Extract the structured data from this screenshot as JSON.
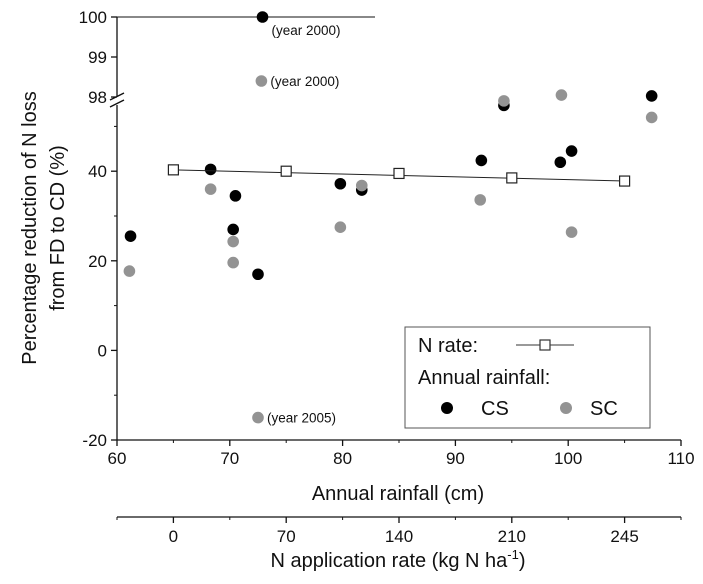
{
  "chart_data": {
    "type": "scatter",
    "title": "",
    "ylabel_line1": "Percentage reduction of N loss",
    "ylabel_line2": "from FD to CD (%)",
    "xlabel": "Annual rainfall (cm)",
    "x2label_text": "N application rate (kg N ha",
    "x2label_sup": "-1",
    "x2label_close": ")",
    "xlim": [
      60,
      110
    ],
    "x_ticks": [
      60,
      70,
      80,
      90,
      100,
      110
    ],
    "ylim_lower": [
      -20,
      55
    ],
    "y_ticks_lower": [
      -20,
      0,
      20,
      40
    ],
    "ylim_upper": [
      98,
      100
    ],
    "y_ticks_upper": [
      98,
      99,
      100
    ],
    "x2_ticks": [
      {
        "label": "0",
        "at_rainfall": 65
      },
      {
        "label": "70",
        "at_rainfall": 75
      },
      {
        "label": "140",
        "at_rainfall": 85
      },
      {
        "label": "210",
        "at_rainfall": 95
      },
      {
        "label": "245",
        "at_rainfall": 105
      }
    ],
    "series": [
      {
        "name": "CS",
        "color": "#000000",
        "points": [
          {
            "x": 61.2,
            "y": 25.5
          },
          {
            "x": 68.3,
            "y": 40.4
          },
          {
            "x": 70.5,
            "y": 34.5
          },
          {
            "x": 70.3,
            "y": 27.0
          },
          {
            "x": 72.5,
            "y": 17.0
          },
          {
            "x": 79.8,
            "y": 37.2
          },
          {
            "x": 81.7,
            "y": 35.8
          },
          {
            "x": 92.3,
            "y": 42.4
          },
          {
            "x": 94.3,
            "y": 54.7
          },
          {
            "x": 99.3,
            "y": 42.0
          },
          {
            "x": 100.3,
            "y": 44.5
          },
          {
            "x": 107.4,
            "y": 56.8
          },
          {
            "x": 72.9,
            "y": 100.0
          }
        ]
      },
      {
        "name": "SC",
        "color": "#939393",
        "points": [
          {
            "x": 61.1,
            "y": 17.7
          },
          {
            "x": 68.3,
            "y": 36.0
          },
          {
            "x": 70.3,
            "y": 24.3
          },
          {
            "x": 70.3,
            "y": 19.6
          },
          {
            "x": 79.8,
            "y": 27.5
          },
          {
            "x": 81.7,
            "y": 36.8
          },
          {
            "x": 92.2,
            "y": 33.6
          },
          {
            "x": 94.3,
            "y": 55.7
          },
          {
            "x": 99.4,
            "y": 57.0
          },
          {
            "x": 100.3,
            "y": 26.4
          },
          {
            "x": 107.4,
            "y": 52.0
          },
          {
            "x": 72.8,
            "y": 98.4
          },
          {
            "x": 72.5,
            "y": -15.0
          }
        ]
      },
      {
        "name": "N rate",
        "color": "#222222",
        "points": [
          {
            "x": 65,
            "y": 40.3
          },
          {
            "x": 75,
            "y": 40.0
          },
          {
            "x": 85,
            "y": 39.5
          },
          {
            "x": 95,
            "y": 38.5
          },
          {
            "x": 105,
            "y": 37.8
          }
        ]
      }
    ],
    "annotations": [
      {
        "text": "(year 2000)",
        "x": 72.9,
        "y": 100.0
      },
      {
        "text": "(year 2000)",
        "x": 72.8,
        "y": 98.4
      },
      {
        "text": "(year 2005)",
        "x": 72.5,
        "y": -15.0
      }
    ],
    "legend": {
      "position": "bottom-right",
      "nrate_label": "N rate:",
      "rainfall_label": "Annual rainfall:",
      "cs_label": "CS",
      "sc_label": "SC"
    }
  }
}
